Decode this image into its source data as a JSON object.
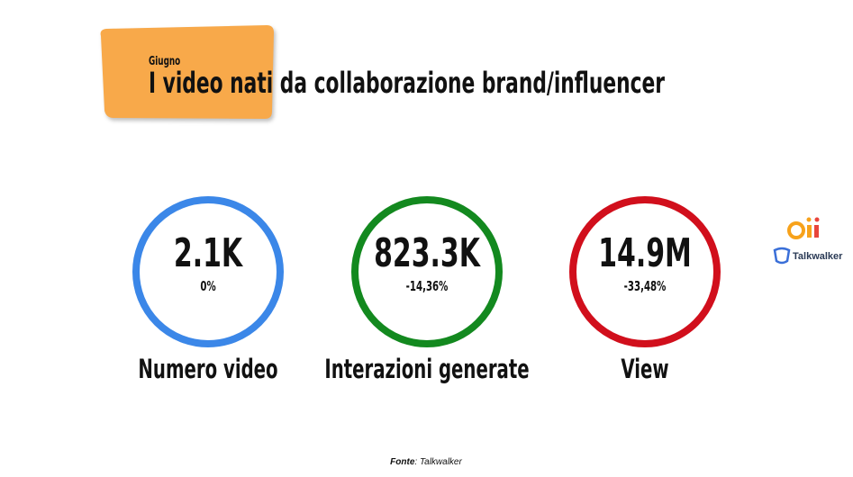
{
  "header": {
    "kicker": "Giugno",
    "title": "I video nati da collaborazione brand/influencer"
  },
  "kpis": [
    {
      "value": "2.1K",
      "change": "0%",
      "label": "Numero video",
      "color": "#3b87e8"
    },
    {
      "value": "823.3K",
      "change": "-14,36%",
      "label": "Interazioni generate",
      "color": "#13891f"
    },
    {
      "value": "14.9M",
      "change": "-33,48%",
      "label": "View",
      "color": "#d10f1c"
    }
  ],
  "logo": {
    "talkwalker": "Talkwalker"
  },
  "source": {
    "label": "Fonte",
    "text": ": Talkwalker"
  }
}
